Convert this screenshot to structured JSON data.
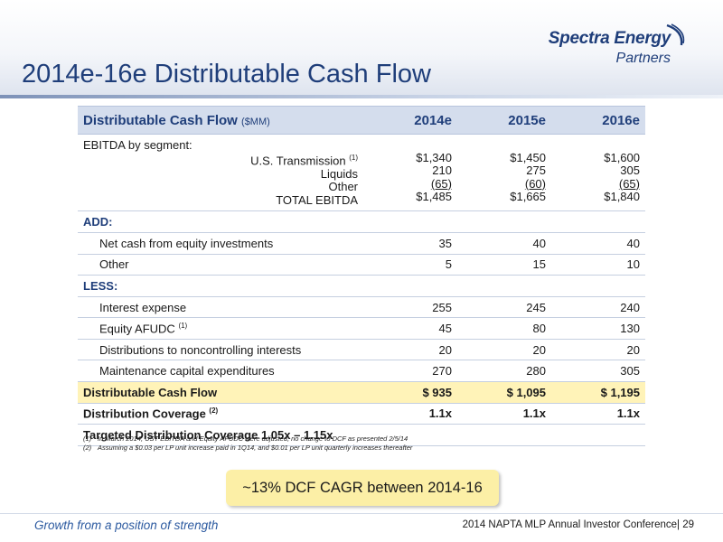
{
  "header": {
    "title": "2014e-16e Distributable Cash Flow",
    "logo_main": "Spectra Energy",
    "logo_sub": "Partners"
  },
  "table": {
    "title": "Distributable Cash Flow",
    "unit": "($MM)",
    "years": [
      "2014e",
      "2015e",
      "2016e"
    ],
    "ebitda_label": "EBITDA by segment:",
    "segments": [
      {
        "label": "U.S. Transmission",
        "note": "(1)",
        "values": [
          "$1,340",
          "$1,450",
          "$1,600"
        ]
      },
      {
        "label": "Liquids",
        "note": "",
        "values": [
          "210",
          "275",
          "305"
        ]
      },
      {
        "label": "Other",
        "note": "",
        "values": [
          "(65)",
          "(60)",
          "(65)"
        ]
      },
      {
        "label": "TOTAL EBITDA",
        "note": "",
        "values": [
          "$1,485",
          "$1,665",
          "$1,840"
        ]
      }
    ],
    "add_label": "ADD:",
    "add_rows": [
      {
        "label": "Net cash from equity investments",
        "values": [
          "35",
          "40",
          "40"
        ]
      },
      {
        "label": "Other",
        "values": [
          "5",
          "15",
          "10"
        ]
      }
    ],
    "less_label": "LESS:",
    "less_rows": [
      {
        "label": "Interest expense",
        "note": "",
        "values": [
          "255",
          "245",
          "240"
        ]
      },
      {
        "label": "Equity AFUDC",
        "note": "(1)",
        "values": [
          "45",
          "80",
          "130"
        ]
      },
      {
        "label": "Distributions to noncontrolling interests",
        "note": "",
        "values": [
          "20",
          "20",
          "20"
        ]
      },
      {
        "label": "Maintenance capital expenditures",
        "note": "",
        "values": [
          "270",
          "280",
          "305"
        ]
      }
    ],
    "dcf": {
      "label": "Distributable Cash Flow",
      "values": [
        "$ 935",
        "$ 1,095",
        "$ 1,195"
      ]
    },
    "coverage": {
      "label": "Distribution Coverage",
      "note": "(2)",
      "values": [
        "1.1x",
        "1.1x",
        "1.1x"
      ]
    },
    "targeted": "Targeted Distribution Coverage 1.05x – 1.15x"
  },
  "footnotes": [
    {
      "n": "(1)",
      "text": "In March 2014, UST EBITDA and Equity AFUDC were adjusted; no change to DCF as presented 2/5/14"
    },
    {
      "n": "(2)",
      "text": "Assuming a $0.03 per LP unit increase paid in 1Q14, and $0.01 per LP unit quarterly increases thereafter"
    }
  ],
  "callout": "~13% DCF CAGR between 2014-16",
  "footer": {
    "tagline": "Growth from a position of strength",
    "conference": "2014 NAPTA MLP Annual Investor Conference|  29"
  },
  "colors": {
    "brand_blue": "#1f3e7a",
    "header_row": "#d4dded",
    "highlight": "#fff3b8",
    "callout": "#fcefa6"
  }
}
